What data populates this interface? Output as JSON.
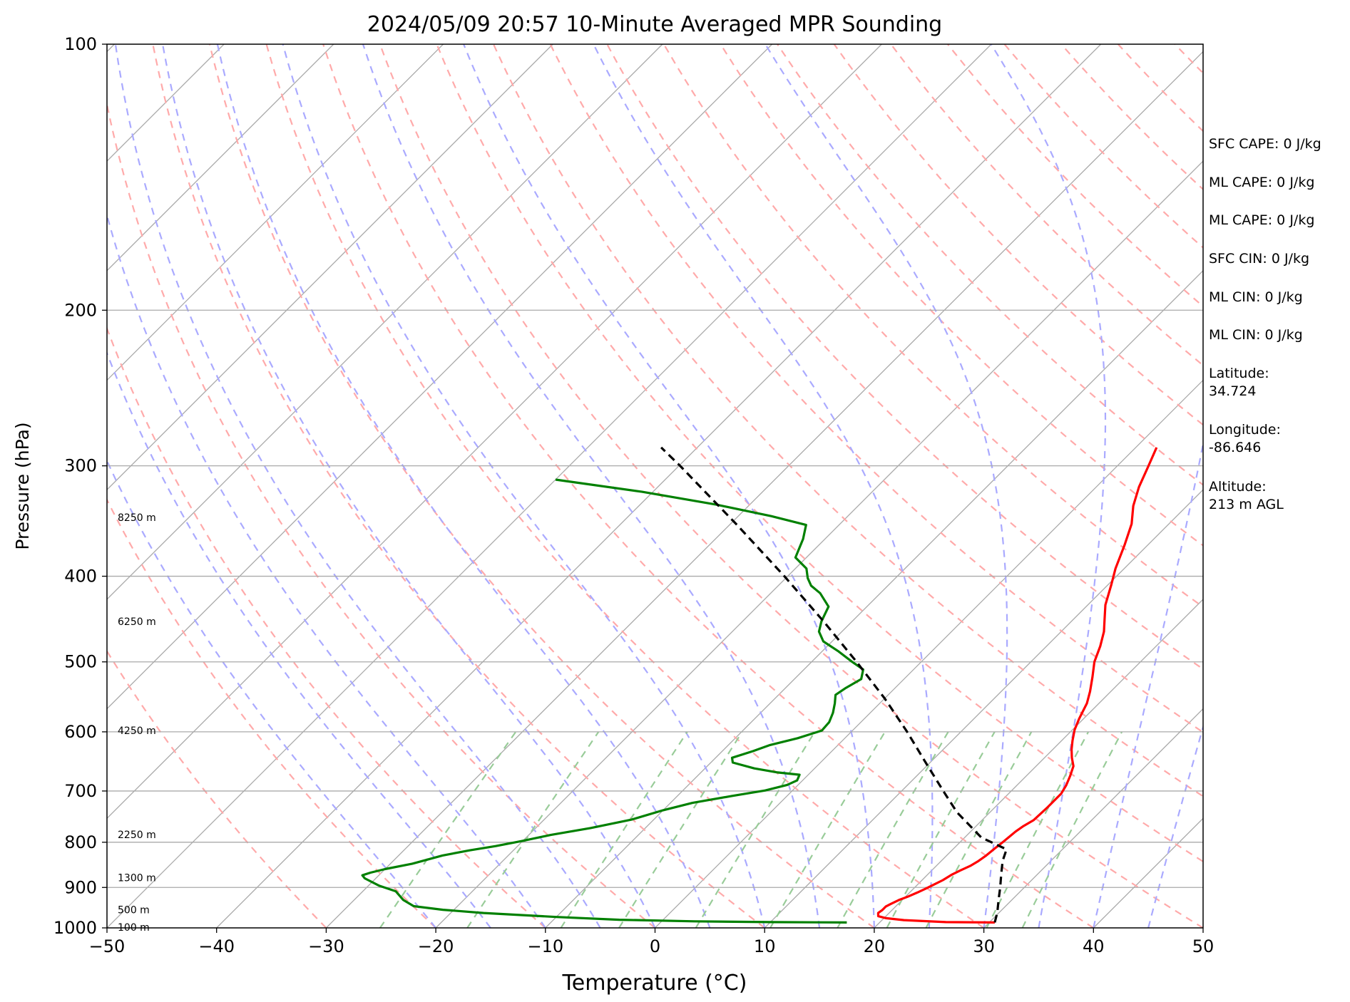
{
  "chart_data": {
    "type": "line",
    "title": "2024/05/09 20:57 10-Minute Averaged MPR Sounding",
    "xlabel": "Temperature (°C)",
    "ylabel": "Pressure (hPa)",
    "xlim": [
      -50,
      50
    ],
    "ylim": [
      1000,
      100
    ],
    "y_scale": "log",
    "skew": "skew-T (isotherms slanted)",
    "xticks": [
      "−50",
      "−40",
      "−30",
      "−20",
      "−10",
      "0",
      "10",
      "20",
      "30",
      "40",
      "50"
    ],
    "yticks": [
      "100",
      "200",
      "300",
      "400",
      "500",
      "600",
      "700",
      "800",
      "900",
      "1000"
    ],
    "grid": "horizontal at labeled pressure levels",
    "height_labels": [
      {
        "p": 343,
        "text": "8250 m"
      },
      {
        "p": 450,
        "text": "6250 m"
      },
      {
        "p": 598,
        "text": "4250 m"
      },
      {
        "p": 784,
        "text": "2250 m"
      },
      {
        "p": 877,
        "text": "1300 m"
      },
      {
        "p": 954,
        "text": "500 m"
      },
      {
        "p": 998,
        "text": "100 m"
      }
    ],
    "series": [
      {
        "color": "#ff0000",
        "points": [
          [
            986,
            30.5
          ],
          [
            985,
            26.0
          ],
          [
            980,
            22.0
          ],
          [
            975,
            20.2
          ],
          [
            970,
            19.3
          ],
          [
            962,
            19.0
          ],
          [
            955,
            19.1
          ],
          [
            946,
            19.1
          ],
          [
            940,
            19.3
          ],
          [
            930,
            19.7
          ],
          [
            922,
            20.2
          ],
          [
            912,
            20.7
          ],
          [
            903,
            21.1
          ],
          [
            893,
            21.5
          ],
          [
            883,
            21.9
          ],
          [
            871,
            22.2
          ],
          [
            861,
            22.6
          ],
          [
            851,
            23.1
          ],
          [
            840,
            23.4
          ],
          [
            828,
            23.6
          ],
          [
            818,
            23.7
          ],
          [
            808,
            23.8
          ],
          [
            799,
            23.9
          ],
          [
            789,
            24.0
          ],
          [
            778,
            24.1
          ],
          [
            768,
            24.3
          ],
          [
            755,
            24.7
          ],
          [
            730,
            24.8
          ],
          [
            705,
            24.8
          ],
          [
            690,
            24.5
          ],
          [
            673,
            24.0
          ],
          [
            656,
            23.4
          ],
          [
            642,
            22.5
          ],
          [
            628,
            21.7
          ],
          [
            614,
            21.0
          ],
          [
            597,
            20.2
          ],
          [
            580,
            19.6
          ],
          [
            557,
            18.9
          ],
          [
            540,
            18.1
          ],
          [
            520,
            17.0
          ],
          [
            500,
            15.8
          ],
          [
            480,
            14.9
          ],
          [
            462,
            13.9
          ],
          [
            447,
            12.8
          ],
          [
            431,
            11.6
          ],
          [
            409,
            10.3
          ],
          [
            392,
            9.2
          ],
          [
            369,
            7.9
          ],
          [
            349,
            6.6
          ],
          [
            333,
            5.1
          ],
          [
            317,
            3.9
          ],
          [
            301,
            2.9
          ],
          [
            286,
            1.9
          ]
        ]
      },
      {
        "color": "#008000",
        "points": [
          [
            986,
            17.0
          ],
          [
            985,
            10.0
          ],
          [
            983,
            3.0
          ],
          [
            979,
            -4.0
          ],
          [
            972,
            -10.0
          ],
          [
            962,
            -17.0
          ],
          [
            954,
            -21.0
          ],
          [
            945,
            -24.0
          ],
          [
            930,
            -25.5
          ],
          [
            909,
            -27.0
          ],
          [
            896,
            -29.0
          ],
          [
            879,
            -31.0
          ],
          [
            872,
            -31.5
          ],
          [
            866,
            -31.0
          ],
          [
            858,
            -30.0
          ],
          [
            846,
            -28.0
          ],
          [
            828,
            -26.0
          ],
          [
            817,
            -24.0
          ],
          [
            808,
            -22.0
          ],
          [
            797,
            -20.0
          ],
          [
            785,
            -18.0
          ],
          [
            771,
            -15.0
          ],
          [
            754,
            -12.0
          ],
          [
            736,
            -10.0
          ],
          [
            722,
            -8.0
          ],
          [
            709,
            -5.0
          ],
          [
            699,
            -2.5
          ],
          [
            689,
            -1.0
          ],
          [
            681,
            -0.5
          ],
          [
            671,
            -0.8
          ],
          [
            667,
            -3.0
          ],
          [
            660,
            -5.5
          ],
          [
            650,
            -8.0
          ],
          [
            642,
            -8.5
          ],
          [
            631,
            -7.2
          ],
          [
            621,
            -6.2
          ],
          [
            610,
            -4.3
          ],
          [
            598,
            -2.8
          ],
          [
            585,
            -2.9
          ],
          [
            571,
            -3.4
          ],
          [
            557,
            -4.1
          ],
          [
            545,
            -4.8
          ],
          [
            535,
            -4.5
          ],
          [
            523,
            -3.9
          ],
          [
            510,
            -4.6
          ],
          [
            500,
            -6.3
          ],
          [
            486,
            -8.6
          ],
          [
            474,
            -10.8
          ],
          [
            462,
            -12.1
          ],
          [
            450,
            -12.8
          ],
          [
            433,
            -13.5
          ],
          [
            418,
            -15.5
          ],
          [
            410,
            -17.0
          ],
          [
            402,
            -18.0
          ],
          [
            392,
            -19.0
          ],
          [
            381,
            -21.0
          ],
          [
            363,
            -22.0
          ],
          [
            350,
            -23.0
          ],
          [
            342,
            -27.0
          ],
          [
            332,
            -33.0
          ],
          [
            321,
            -41.0
          ],
          [
            311,
            -50.0
          ]
        ]
      },
      {
        "color": "#000000",
        "dash": "dashed",
        "points": [
          [
            986,
            30.5
          ],
          [
            960,
            29.8
          ],
          [
            930,
            28.8
          ],
          [
            900,
            27.8
          ],
          [
            870,
            26.7
          ],
          [
            840,
            25.6
          ],
          [
            815,
            24.9
          ],
          [
            790,
            21.5
          ],
          [
            740,
            17.0
          ],
          [
            700,
            13.8
          ],
          [
            650,
            9.6
          ],
          [
            600,
            5.1
          ],
          [
            550,
            0.0
          ],
          [
            500,
            -5.9
          ],
          [
            450,
            -12.6
          ],
          [
            400,
            -20.3
          ],
          [
            350,
            -29.3
          ],
          [
            300,
            -39.9
          ],
          [
            286,
            -43.3
          ]
        ]
      }
    ],
    "reference_lines": {
      "dry_adiabats": "faint red dashed",
      "moist_adiabats": "faint blue dashed",
      "mixing_ratio": "faint green dashed",
      "isotherms": "gray solid skewed"
    },
    "colors": {
      "dry_adiabat": "#ffaaaa",
      "moist_adiabat": "#aaaaff",
      "mixing_ratio": "#99cc99",
      "isotherm": "#aaaaaa"
    }
  },
  "annotations": [
    {
      "key": "sfc_cape",
      "text": "SFC CAPE: 0 J/kg"
    },
    {
      "key": "ml_cape_1",
      "text": "ML CAPE: 0 J/kg"
    },
    {
      "key": "ml_cape_2",
      "text": "ML CAPE: 0 J/kg"
    },
    {
      "key": "sfc_cin",
      "text": "SFC CIN: 0 J/kg"
    },
    {
      "key": "ml_cin_1",
      "text": "ML CIN: 0 J/kg"
    },
    {
      "key": "ml_cin_2",
      "text": "ML CIN: 0 J/kg"
    },
    {
      "key": "latitude",
      "text": "Latitude:\n34.724"
    },
    {
      "key": "longitude",
      "text": "Longitude:\n-86.646"
    },
    {
      "key": "altitude",
      "text": "Altitude:\n213 m AGL"
    }
  ]
}
